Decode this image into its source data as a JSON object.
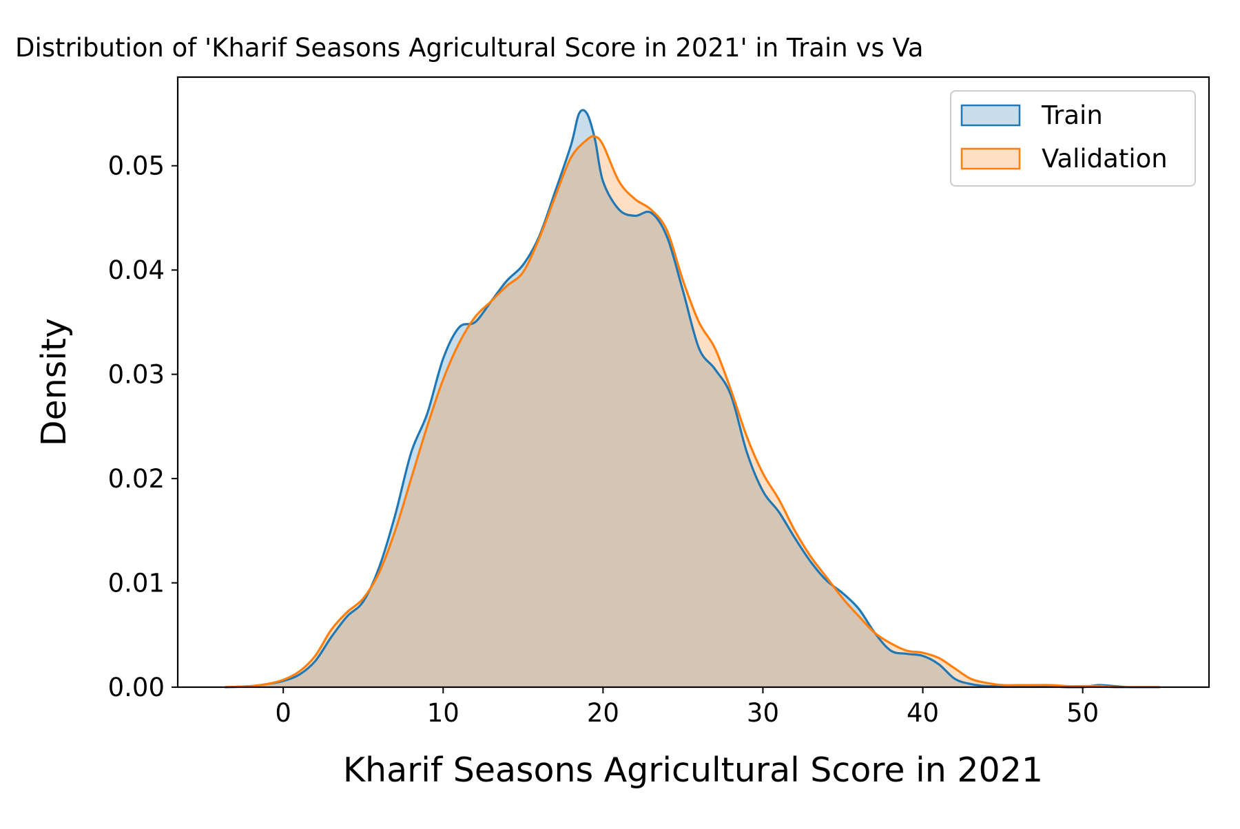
{
  "chart_data": {
    "type": "area",
    "title": "Distribution of 'Kharif Seasons Agricultural Score in 2021' in Train vs Va",
    "xlabel": "Kharif Seasons Agricultural Score in 2021",
    "ylabel": "Density",
    "xlim": [
      -6.6,
      57.9
    ],
    "ylim": [
      0,
      0.0585
    ],
    "xticks": [
      0,
      10,
      20,
      30,
      40,
      50
    ],
    "xtick_labels": [
      "0",
      "10",
      "20",
      "30",
      "40",
      "50"
    ],
    "yticks": [
      0.0,
      0.01,
      0.02,
      0.03,
      0.04,
      0.05
    ],
    "ytick_labels": [
      "0.00",
      "0.01",
      "0.02",
      "0.03",
      "0.04",
      "0.05"
    ],
    "grid": false,
    "legend": {
      "placement": "top-right",
      "entries": [
        "Train",
        "Validation"
      ]
    },
    "series": [
      {
        "name": "Train",
        "color": "#1f77b4",
        "fill_color": "#1f77b4",
        "fill_alpha": 0.25,
        "x": [
          -3.6,
          -2,
          -1,
          0,
          1,
          2,
          3,
          4,
          5,
          6,
          7,
          8,
          9,
          10,
          11,
          12,
          13,
          14,
          15,
          16,
          17,
          18,
          18.5,
          19,
          19.5,
          20,
          21,
          22,
          23,
          24,
          25,
          26,
          27,
          28,
          29,
          30,
          31,
          32,
          33,
          34,
          35,
          36,
          37,
          38,
          39,
          40,
          41,
          42,
          43,
          44,
          45,
          46,
          47,
          48,
          49,
          50,
          51,
          52,
          53,
          54.8
        ],
        "y": [
          0.0,
          0.0001,
          0.0003,
          0.0006,
          0.0012,
          0.0025,
          0.0048,
          0.0068,
          0.0082,
          0.0115,
          0.0165,
          0.0225,
          0.0262,
          0.0315,
          0.0345,
          0.035,
          0.037,
          0.039,
          0.0405,
          0.0432,
          0.0475,
          0.052,
          0.055,
          0.055,
          0.0525,
          0.0485,
          0.0458,
          0.0452,
          0.0455,
          0.0432,
          0.038,
          0.0325,
          0.0305,
          0.028,
          0.0225,
          0.0188,
          0.0168,
          0.0143,
          0.012,
          0.0102,
          0.009,
          0.0075,
          0.0052,
          0.0035,
          0.0032,
          0.003,
          0.0022,
          0.0008,
          0.0003,
          0.0001,
          0.0001,
          0.0001,
          0.0001,
          0.0001,
          0.0,
          0.0,
          0.0002,
          0.0001,
          0.0,
          0.0
        ]
      },
      {
        "name": "Validation",
        "color": "#ff7f0e",
        "fill_color": "#ff7f0e",
        "fill_alpha": 0.25,
        "x": [
          -3.6,
          -2,
          -1,
          0,
          1,
          2,
          3,
          4,
          5,
          6,
          7,
          8,
          9,
          10,
          11,
          12,
          13,
          14,
          15,
          16,
          17,
          18,
          19,
          19.5,
          20,
          21,
          22,
          23,
          24,
          25,
          26,
          27,
          28,
          29,
          30,
          31,
          32,
          33,
          34,
          35,
          36,
          37,
          38,
          39,
          40,
          41,
          42,
          43,
          44,
          45,
          46,
          47,
          48,
          49,
          50,
          51,
          52,
          53,
          54.8
        ],
        "y": [
          0.0,
          0.0001,
          0.0003,
          0.0007,
          0.0015,
          0.003,
          0.0055,
          0.0072,
          0.0085,
          0.011,
          0.015,
          0.02,
          0.025,
          0.0295,
          0.033,
          0.0355,
          0.037,
          0.0385,
          0.0398,
          0.043,
          0.047,
          0.0508,
          0.0525,
          0.0528,
          0.052,
          0.0485,
          0.0468,
          0.0458,
          0.0438,
          0.039,
          0.035,
          0.0325,
          0.0285,
          0.024,
          0.0205,
          0.018,
          0.015,
          0.0125,
          0.0105,
          0.0085,
          0.0068,
          0.0052,
          0.0042,
          0.0035,
          0.0033,
          0.0028,
          0.0018,
          0.0008,
          0.0004,
          0.0002,
          0.0002,
          0.0002,
          0.0002,
          0.0001,
          0.0001,
          0.0001,
          0.0,
          0.0,
          0.0
        ]
      }
    ]
  }
}
